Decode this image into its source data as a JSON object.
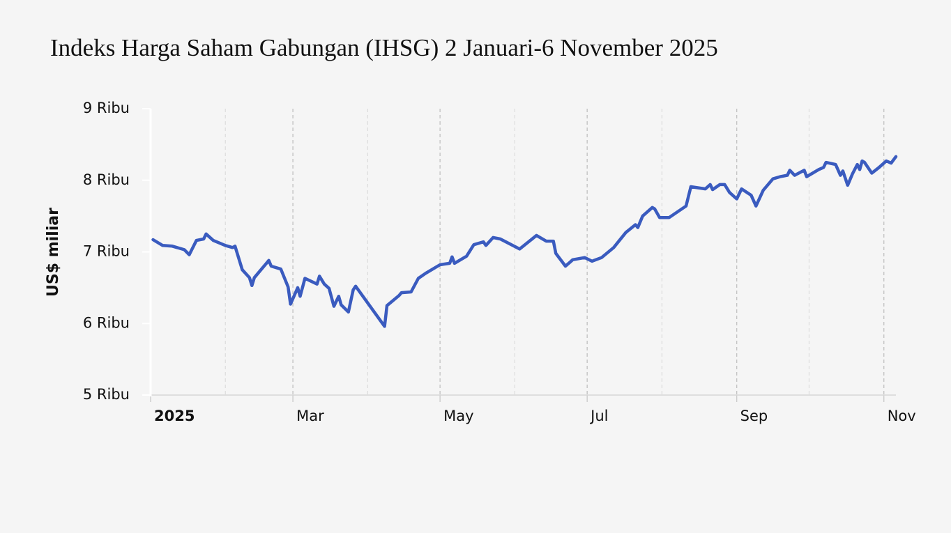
{
  "chart_data": {
    "type": "line",
    "title": "Indeks Harga Saham Gabungan (IHSG) 2 Januari-6 November 2025",
    "y_label": "US$ miliar",
    "x": [
      "2025-01-02",
      "2025-01-06",
      "2025-01-10",
      "2025-01-15",
      "2025-01-17",
      "2025-01-20",
      "2025-01-23",
      "2025-01-24",
      "2025-01-27",
      "2025-02-01",
      "2025-02-04",
      "2025-02-05",
      "2025-02-08",
      "2025-02-11",
      "2025-02-12",
      "2025-02-13",
      "2025-02-18",
      "2025-02-19",
      "2025-02-20",
      "2025-02-24",
      "2025-02-27",
      "2025-02-28",
      "2025-03-03",
      "2025-03-04",
      "2025-03-06",
      "2025-03-11",
      "2025-03-12",
      "2025-03-14",
      "2025-03-16",
      "2025-03-18",
      "2025-03-20",
      "2025-03-21",
      "2025-03-24",
      "2025-03-26",
      "2025-03-27",
      "2025-04-08",
      "2025-04-09",
      "2025-04-14",
      "2025-04-15",
      "2025-04-19",
      "2025-04-22",
      "2025-04-25",
      "2025-05-01",
      "2025-05-05",
      "2025-05-06",
      "2025-05-07",
      "2025-05-12",
      "2025-05-15",
      "2025-05-19",
      "2025-05-20",
      "2025-05-23",
      "2025-05-26",
      "2025-06-03",
      "2025-06-10",
      "2025-06-14",
      "2025-06-17",
      "2025-06-18",
      "2025-06-22",
      "2025-06-24",
      "2025-06-25",
      "2025-06-30",
      "2025-07-03",
      "2025-07-07",
      "2025-07-12",
      "2025-07-17",
      "2025-07-21",
      "2025-07-22",
      "2025-07-24",
      "2025-07-28",
      "2025-07-29",
      "2025-07-31",
      "2025-08-04",
      "2025-08-11",
      "2025-08-13",
      "2025-08-19",
      "2025-08-21",
      "2025-08-22",
      "2025-08-25",
      "2025-08-27",
      "2025-08-29",
      "2025-09-01",
      "2025-09-03",
      "2025-09-07",
      "2025-09-09",
      "2025-09-12",
      "2025-09-16",
      "2025-09-19",
      "2025-09-22",
      "2025-09-23",
      "2025-09-25",
      "2025-09-29",
      "2025-09-30",
      "2025-10-05",
      "2025-10-07",
      "2025-10-08",
      "2025-10-12",
      "2025-10-14",
      "2025-10-15",
      "2025-10-17",
      "2025-10-19",
      "2025-10-21",
      "2025-10-22",
      "2025-10-23",
      "2025-10-24",
      "2025-10-27",
      "2025-10-30",
      "2025-11-02",
      "2025-11-04",
      "2025-11-06"
    ],
    "series": [
      {
        "name": "IHSG",
        "color": "#3a5bbf",
        "values": [
          7170,
          7090,
          7080,
          7030,
          6960,
          7160,
          7180,
          7250,
          7160,
          7090,
          7060,
          7080,
          6750,
          6640,
          6530,
          6640,
          6840,
          6880,
          6800,
          6760,
          6510,
          6270,
          6500,
          6380,
          6630,
          6550,
          6660,
          6550,
          6490,
          6240,
          6380,
          6260,
          6160,
          6470,
          6520,
          5960,
          6250,
          6390,
          6430,
          6440,
          6630,
          6700,
          6820,
          6840,
          6930,
          6840,
          6940,
          7100,
          7140,
          7090,
          7200,
          7180,
          7040,
          7230,
          7150,
          7150,
          6980,
          6800,
          6860,
          6890,
          6920,
          6870,
          6920,
          7060,
          7270,
          7380,
          7340,
          7500,
          7620,
          7600,
          7480,
          7480,
          7640,
          7910,
          7880,
          7940,
          7870,
          7940,
          7940,
          7830,
          7740,
          7880,
          7790,
          7640,
          7860,
          8020,
          8050,
          8070,
          8140,
          8070,
          8140,
          8050,
          8150,
          8180,
          8250,
          8220,
          8070,
          8130,
          7930,
          8090,
          8220,
          8150,
          8270,
          8250,
          8100,
          8180,
          8270,
          8240,
          8330
        ]
      }
    ],
    "xlim": [
      "2025-01-01",
      "2025-11-06"
    ],
    "xticks": [
      {
        "value": "2025-01-01",
        "label": "2025"
      },
      {
        "value": "2025-03-01",
        "label": "Mar"
      },
      {
        "value": "2025-05-01",
        "label": "May"
      },
      {
        "value": "2025-07-01",
        "label": "Jul"
      },
      {
        "value": "2025-09-01",
        "label": "Sep"
      },
      {
        "value": "2025-11-01",
        "label": "Nov"
      }
    ],
    "xticks_minor": [
      "2025-02-01",
      "2025-04-01",
      "2025-06-01",
      "2025-08-01",
      "2025-10-01"
    ],
    "ylim": [
      5000,
      9000
    ],
    "yticks": [
      {
        "value": 5000,
        "label": "5 Ribu"
      },
      {
        "value": 6000,
        "label": "6 Ribu"
      },
      {
        "value": 7000,
        "label": "7 Ribu"
      },
      {
        "value": 8000,
        "label": "8 Ribu"
      },
      {
        "value": 9000,
        "label": "9 Ribu"
      }
    ],
    "grid": true
  }
}
